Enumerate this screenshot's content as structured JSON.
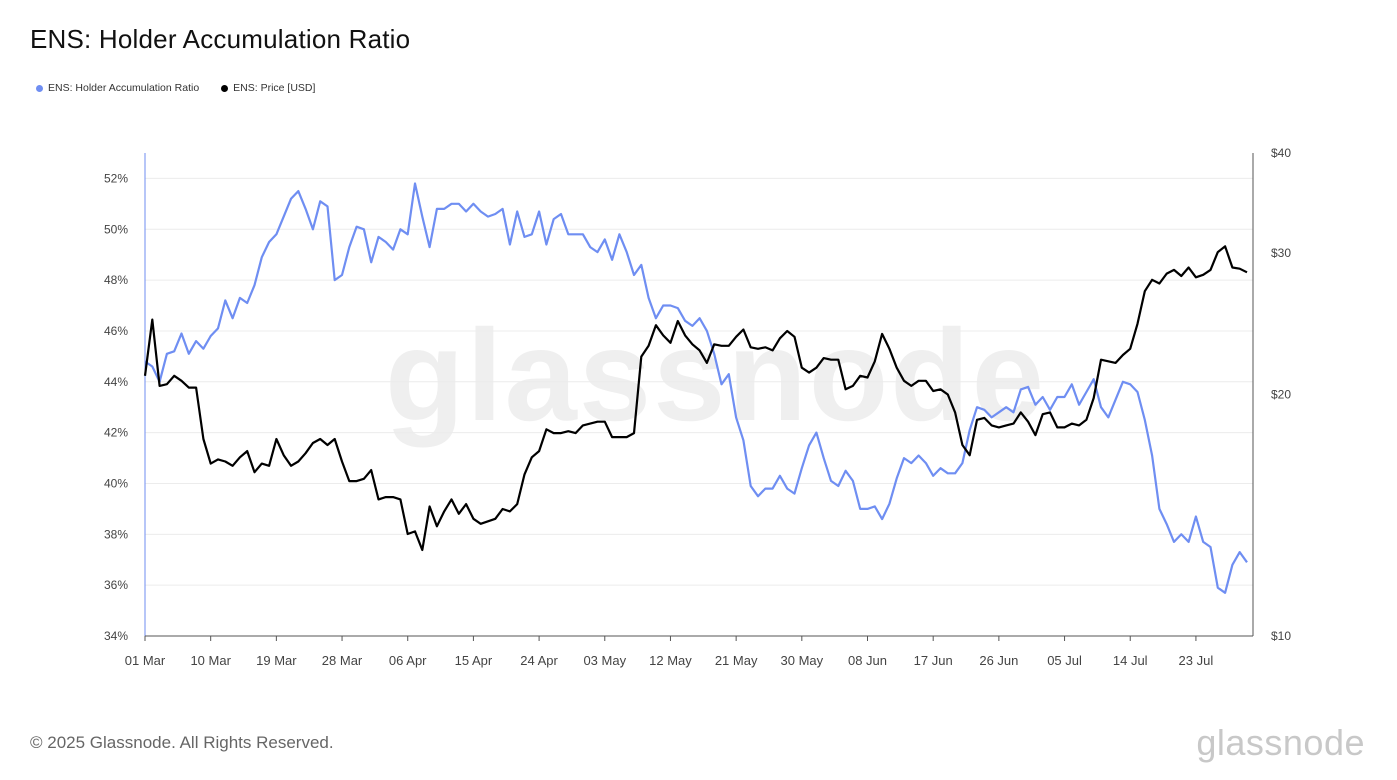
{
  "header": {
    "title": "ENS: Holder Accumulation Ratio"
  },
  "legend": [
    {
      "label": "ENS: Holder Accumulation Ratio",
      "color": "#6f8ef2"
    },
    {
      "label": "ENS: Price [USD]",
      "color": "#000000"
    }
  ],
  "watermark": "glassnode",
  "footer": {
    "copyright": "© 2025 Glassnode. All Rights Reserved.",
    "logo": "glassnode"
  },
  "chart_data": {
    "type": "line",
    "x_tick_labels": [
      "01 Mar",
      "10 Mar",
      "19 Mar",
      "28 Mar",
      "06 Apr",
      "15 Apr",
      "24 Apr",
      "03 May",
      "12 May",
      "21 May",
      "30 May",
      "08 Jun",
      "17 Jun",
      "26 Jun",
      "05 Jul",
      "14 Jul",
      "23 Jul"
    ],
    "x_start": "2025-03-01",
    "y_left": {
      "ticks": [
        "34%",
        "36%",
        "38%",
        "40%",
        "42%",
        "44%",
        "46%",
        "48%",
        "50%",
        "52%"
      ],
      "min": 34,
      "max": 53
    },
    "y_right": {
      "ticks": [
        "$10",
        "$20",
        "$30",
        "$40"
      ],
      "scale": "log",
      "min": 10,
      "max": 40
    },
    "grid": true,
    "series": [
      {
        "name": "ENS: Holder Accumulation Ratio",
        "axis": "left",
        "color": "#6f8ef2",
        "values": [
          44.8,
          44.6,
          44.0,
          45.1,
          45.2,
          45.9,
          45.1,
          45.6,
          45.3,
          45.8,
          46.1,
          47.2,
          46.5,
          47.3,
          47.1,
          47.8,
          48.9,
          49.5,
          49.8,
          50.5,
          51.2,
          51.5,
          50.8,
          50.0,
          51.1,
          50.9,
          48.0,
          48.2,
          49.3,
          50.1,
          50.0,
          48.7,
          49.7,
          49.5,
          49.2,
          50.0,
          49.8,
          51.8,
          50.5,
          49.3,
          50.8,
          50.8,
          51.0,
          51.0,
          50.7,
          51.0,
          50.7,
          50.5,
          50.6,
          50.8,
          49.4,
          50.7,
          49.7,
          49.8,
          50.7,
          49.4,
          50.4,
          50.6,
          49.8,
          49.8,
          49.8,
          49.3,
          49.1,
          49.6,
          48.8,
          49.8,
          49.1,
          48.2,
          48.6,
          47.3,
          46.5,
          47.0,
          47.0,
          46.9,
          46.4,
          46.2,
          46.5,
          46.0,
          45.1,
          43.9,
          44.3,
          42.6,
          41.7,
          39.9,
          39.5,
          39.8,
          39.8,
          40.3,
          39.8,
          39.6,
          40.6,
          41.5,
          42.0,
          41.0,
          40.1,
          39.9,
          40.5,
          40.1,
          39.0,
          39.0,
          39.1,
          38.6,
          39.2,
          40.2,
          41.0,
          40.8,
          41.1,
          40.8,
          40.3,
          40.6,
          40.4,
          40.4,
          40.8,
          42.1,
          43.0,
          42.9,
          42.6,
          42.8,
          43.0,
          42.8,
          43.7,
          43.8,
          43.1,
          43.4,
          42.9,
          43.4,
          43.4,
          43.9,
          43.1,
          43.6,
          44.1,
          43.0,
          42.6,
          43.3,
          44.0,
          43.9,
          43.6,
          42.5,
          41.1,
          39.0,
          38.4,
          37.7,
          38.0,
          37.7,
          38.7,
          37.7,
          37.5,
          35.9,
          35.7,
          36.8,
          37.3,
          36.9
        ]
      },
      {
        "name": "ENS: Price [USD]",
        "axis": "right",
        "color": "#000000",
        "values": [
          21.1,
          24.8,
          20.5,
          20.6,
          21.1,
          20.8,
          20.4,
          20.4,
          17.6,
          16.4,
          16.6,
          16.5,
          16.3,
          16.7,
          17.0,
          16.0,
          16.4,
          16.3,
          17.6,
          16.8,
          16.3,
          16.5,
          16.9,
          17.4,
          17.6,
          17.3,
          17.6,
          16.5,
          15.6,
          15.6,
          15.7,
          16.1,
          14.8,
          14.9,
          14.9,
          14.8,
          13.4,
          13.5,
          12.8,
          14.5,
          13.7,
          14.3,
          14.8,
          14.2,
          14.6,
          14.0,
          13.8,
          13.9,
          14.0,
          14.4,
          14.3,
          14.6,
          15.9,
          16.7,
          17.0,
          18.1,
          17.9,
          17.9,
          18.0,
          17.9,
          18.3,
          18.4,
          18.5,
          18.5,
          17.7,
          17.7,
          17.7,
          17.9,
          22.3,
          23.0,
          24.4,
          23.7,
          23.2,
          24.7,
          23.7,
          23.1,
          22.7,
          21.9,
          23.1,
          23.0,
          23.0,
          23.6,
          24.1,
          22.9,
          22.8,
          22.9,
          22.7,
          23.5,
          24.0,
          23.6,
          21.6,
          21.3,
          21.6,
          22.2,
          22.1,
          22.1,
          20.3,
          20.5,
          21.1,
          21.0,
          22.0,
          23.8,
          22.8,
          21.6,
          20.8,
          20.5,
          20.8,
          20.8,
          20.2,
          20.3,
          20.0,
          19.0,
          17.3,
          16.8,
          18.6,
          18.7,
          18.3,
          18.2,
          18.3,
          18.4,
          19.0,
          18.5,
          17.8,
          18.9,
          19.0,
          18.2,
          18.2,
          18.4,
          18.3,
          18.6,
          19.8,
          22.1,
          22.0,
          21.9,
          22.4,
          22.8,
          24.5,
          26.9,
          27.8,
          27.5,
          28.3,
          28.6,
          28.1,
          28.8,
          28.0,
          28.2,
          28.6,
          30.1,
          30.6,
          28.8,
          28.7,
          28.4
        ]
      }
    ]
  }
}
